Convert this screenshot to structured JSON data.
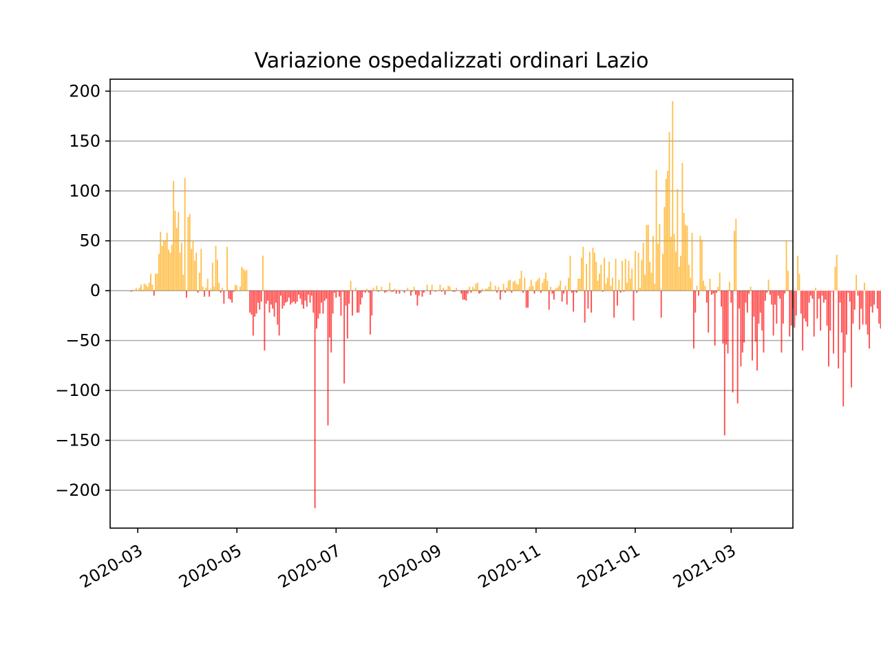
{
  "chart_data": {
    "type": "bar",
    "title": "Variazione ospedalizzati ordinari Lazio",
    "xlabel": "",
    "ylabel": "",
    "x_start_date": "2020-02-24",
    "x_range": [
      "2020-02-13",
      "2021-04-08"
    ],
    "ylim": [
      -238,
      212
    ],
    "grid": "horizontal",
    "legend": "none",
    "colors": {
      "positive": "#ffa500",
      "negative": "#ff0000"
    },
    "y_ticks": [
      {
        "value": 200,
        "label": "200"
      },
      {
        "value": 150,
        "label": "150"
      },
      {
        "value": 100,
        "label": "100"
      },
      {
        "value": 50,
        "label": "50"
      },
      {
        "value": 0,
        "label": "0"
      },
      {
        "value": -50,
        "label": "−50"
      },
      {
        "value": -100,
        "label": "−100"
      },
      {
        "value": -150,
        "label": "−150"
      },
      {
        "value": -200,
        "label": "−200"
      }
    ],
    "x_ticks": [
      {
        "date": "2020-03-01",
        "label": "2020-03"
      },
      {
        "date": "2020-05-01",
        "label": "2020-05"
      },
      {
        "date": "2020-07-01",
        "label": "2020-07"
      },
      {
        "date": "2020-09-01",
        "label": "2020-09"
      },
      {
        "date": "2020-11-01",
        "label": "2020-11"
      },
      {
        "date": "2021-01-01",
        "label": "2021-01"
      },
      {
        "date": "2021-03-01",
        "label": "2021-03"
      }
    ],
    "values": [
      0,
      0,
      -1,
      1,
      0,
      3,
      0,
      3,
      6,
      1,
      7,
      6,
      4,
      8,
      17,
      6,
      -5,
      17,
      17,
      37,
      59,
      45,
      50,
      50,
      58,
      41,
      38,
      46,
      110,
      80,
      63,
      79,
      38,
      48,
      16,
      113,
      -7,
      74,
      77,
      42,
      50,
      30,
      38,
      -2,
      18,
      42,
      4,
      -6,
      3,
      12,
      -6,
      2,
      28,
      4,
      45,
      31,
      8,
      -2,
      3,
      -13,
      0,
      44,
      -8,
      -9,
      -12,
      -1,
      6,
      5,
      0,
      4,
      24,
      22,
      20,
      21,
      0,
      -22,
      -24,
      -45,
      -26,
      -23,
      -12,
      -19,
      -11,
      35,
      -60,
      -13,
      -10,
      -22,
      -14,
      -18,
      -26,
      -12,
      -34,
      -45,
      -5,
      -18,
      -15,
      -12,
      -11,
      -7,
      -14,
      -12,
      -11,
      -13,
      -11,
      -4,
      -8,
      -14,
      -18,
      -10,
      -16,
      -4,
      -12,
      -5,
      -22,
      -218,
      -38,
      -28,
      -23,
      -12,
      -23,
      -10,
      -8,
      -135,
      -47,
      -62,
      -23,
      -2,
      -7,
      -1,
      -6,
      -25,
      -1,
      -93,
      -15,
      -48,
      -13,
      10,
      -25,
      0,
      3,
      -22,
      -22,
      -14,
      -7,
      -1,
      -2,
      2,
      -2,
      -44,
      -25,
      3,
      0,
      5,
      -1,
      0,
      4,
      0,
      -2,
      -1,
      1,
      8,
      -1,
      -1,
      2,
      -3,
      1,
      -3,
      0,
      0,
      -2,
      0,
      3,
      0,
      -5,
      -1,
      4,
      -4,
      -15,
      -5,
      0,
      -6,
      -2,
      0,
      6,
      0,
      -4,
      6,
      0,
      -1,
      0,
      1,
      6,
      -1,
      3,
      -4,
      1,
      5,
      4,
      0,
      -1,
      -1,
      3,
      0,
      0,
      -3,
      -9,
      -9,
      -10,
      -3,
      4,
      -2,
      4,
      2,
      7,
      8,
      -3,
      -2,
      2,
      0,
      2,
      2,
      4,
      9,
      1,
      0,
      5,
      -2,
      4,
      -9,
      -1,
      7,
      -2,
      3,
      10,
      11,
      -2,
      9,
      10,
      7,
      6,
      12,
      20,
      -2,
      13,
      -17,
      -17,
      4,
      11,
      5,
      -3,
      9,
      11,
      13,
      -2,
      8,
      12,
      18,
      10,
      -19,
      4,
      -3,
      -9,
      2,
      3,
      5,
      10,
      -11,
      -3,
      5,
      -14,
      13,
      35,
      -2,
      -21,
      -1,
      -2,
      12,
      12,
      33,
      44,
      -32,
      27,
      -18,
      39,
      -22,
      43,
      38,
      29,
      10,
      17,
      26,
      -1,
      33,
      7,
      13,
      29,
      5,
      13,
      -27,
      32,
      -15,
      11,
      -2,
      30,
      -1,
      32,
      8,
      30,
      12,
      22,
      -30,
      40,
      -2,
      38,
      3,
      31,
      48,
      16,
      66,
      66,
      29,
      18,
      55,
      7,
      121,
      47,
      67,
      -27,
      37,
      84,
      112,
      120,
      159,
      54,
      190,
      57,
      39,
      102,
      24,
      35,
      128,
      78,
      66,
      65,
      26,
      13,
      58,
      -58,
      -22,
      5,
      -5,
      55,
      51,
      10,
      5,
      -12,
      -42,
      12,
      -4,
      -3,
      -55,
      -2,
      4,
      18,
      -16,
      -53,
      -145,
      -54,
      -63,
      9,
      -12,
      -102,
      60,
      72,
      -113,
      -18,
      -76,
      -62,
      -52,
      -12,
      -22,
      -3,
      4,
      -70,
      -26,
      -51,
      -80,
      -33,
      -22,
      -40,
      -62,
      -10,
      -2,
      11,
      -4,
      -14,
      -45,
      -14,
      -33,
      -5,
      -8,
      -62,
      -33,
      -3,
      50,
      20,
      -46,
      -35,
      -18,
      -37,
      -25,
      35,
      17,
      -23,
      -60,
      -28,
      -31,
      -36,
      -12,
      -5,
      -8,
      -46,
      3,
      -28,
      -8,
      -40,
      -5,
      -12,
      -9,
      -35,
      -76,
      -40,
      -1,
      -63,
      24,
      36,
      -78,
      -12,
      -42,
      -116,
      -62,
      -44,
      -2,
      -11,
      -97,
      -33,
      -19,
      16,
      -5,
      -39,
      -18,
      -34,
      8,
      -34,
      -44,
      -58,
      -16,
      -22,
      -14,
      0,
      -18,
      -33,
      -38,
      -41,
      -13,
      -34,
      -45,
      -26,
      -40,
      -16,
      -24,
      -9,
      -11,
      -2,
      -2,
      -26,
      -38,
      -19,
      -12,
      -19,
      -15,
      -5,
      -13,
      -36,
      -72,
      -32,
      -20,
      -27,
      -17,
      -31,
      4,
      -100,
      -22,
      -41,
      -19,
      -9,
      2,
      -2,
      -4,
      -31,
      -17,
      -12,
      -4,
      -44,
      -7,
      -30,
      -14,
      -2,
      -16,
      -18,
      -46,
      2,
      -3,
      -8,
      -5,
      -1,
      0,
      0,
      0,
      -3,
      -9,
      -20,
      -10,
      -17,
      -13,
      -15,
      -4,
      -5,
      -8,
      -7,
      -15,
      -8,
      -3,
      -10,
      -12,
      -23,
      -8,
      -2,
      -3,
      -6,
      -9,
      0,
      -5,
      4,
      -5,
      -4,
      -4,
      -6,
      0,
      -26,
      -22,
      -3,
      -4,
      -2,
      -1,
      -7,
      -6,
      -16,
      -4,
      3,
      -6,
      -5,
      -2,
      -5,
      -3,
      -2,
      -1,
      -3,
      0,
      2,
      4,
      4,
      2,
      7,
      9,
      3,
      11,
      5,
      -1,
      4,
      14,
      22,
      5,
      2,
      12,
      8,
      4,
      -5,
      -46,
      0,
      -8,
      -9,
      0,
      -9,
      0,
      -13,
      -3,
      23,
      71,
      -6,
      -4,
      -4,
      18,
      15,
      7,
      -8,
      -12,
      -13,
      70,
      -7,
      10,
      51,
      31,
      37,
      23,
      83,
      22,
      102,
      31,
      46,
      19,
      -5,
      46,
      98,
      89,
      54,
      41,
      37,
      23,
      85,
      -10,
      -14,
      -7,
      37,
      7,
      10,
      11,
      18,
      12,
      80,
      7,
      9
    ]
  }
}
